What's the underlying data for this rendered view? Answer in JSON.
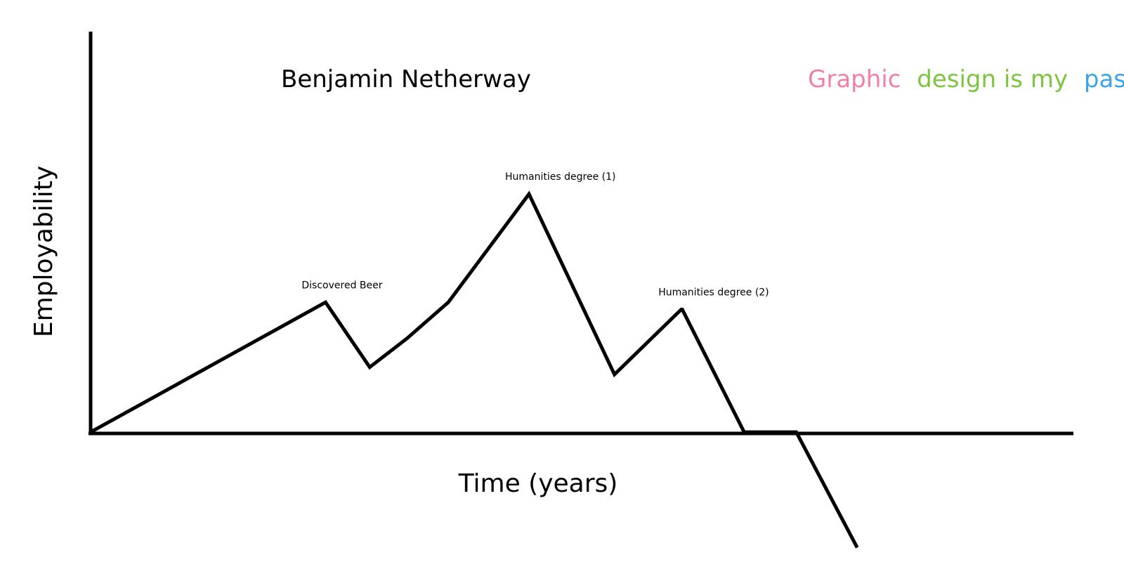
{
  "chart_data": {
    "type": "line",
    "title": "Benjamin Netherway",
    "xlabel": "Time (years)",
    "ylabel": "Employability",
    "xlim": [
      0,
      100
    ],
    "ylim": [
      -18,
      56
    ],
    "grid": false,
    "series": [
      {
        "color": "#000000",
        "x": [
          0,
          23.9,
          28.4,
          32.2,
          36.4,
          44.6,
          53.3,
          60.1,
          60.2,
          66.5,
          71.8,
          78.0
        ],
        "y": [
          0,
          18,
          9,
          13,
          18,
          33,
          8,
          17,
          17,
          0,
          0,
          -16
        ]
      }
    ],
    "annotations": [
      {
        "text": "Discovered Beer",
        "x": 23.9,
        "y": 18
      },
      {
        "text": "Humanities degree (1)",
        "x": 44.6,
        "y": 33
      },
      {
        "text": "Humanities degree (2)",
        "x": 60.2,
        "y": 17
      }
    ]
  },
  "tagline": {
    "words": [
      {
        "text": "Graphic",
        "color": "#f37fa5"
      },
      {
        "text": "design is my",
        "color": "#7cc540"
      },
      {
        "text": "passion",
        "color": "#3da3ec"
      }
    ]
  }
}
